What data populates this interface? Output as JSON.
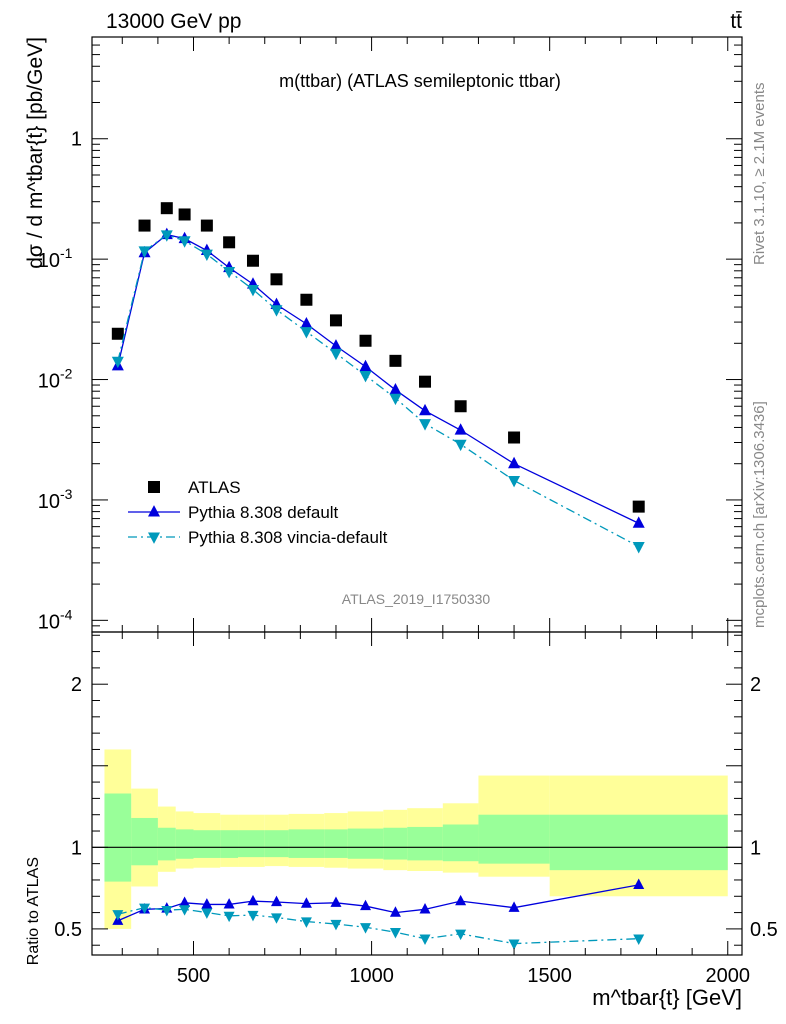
{
  "header": {
    "left": "13000 GeV pp",
    "right": "tt̄"
  },
  "side_text": {
    "rivet": "Rivet 3.1.10, ≥ 2.1M events",
    "mcplots": "mcplots.cern.ch [arXiv:1306.3436]"
  },
  "chart_data": [
    {
      "type": "scatter",
      "title": "m(ttbar) (ATLAS semileptonic ttbar)",
      "ylabel": "dσ / d m^tbar{t} [pb/GeV]",
      "xlabel": "m^tbar{t} [GeV]",
      "analysis_id": "ATLAS_2019_I1750330",
      "y_scale": "log",
      "xlim": [
        215,
        2040
      ],
      "ylim": [
        8e-05,
        7
      ],
      "x_ticks": [
        "500",
        "1000",
        "1500",
        "2000"
      ],
      "y_ticks": [
        "10^-4",
        "10^-3",
        "10^-2",
        "10^-1",
        "1"
      ],
      "legend_position": "bottom-left",
      "x": [
        287.5,
        362.5,
        425,
        475,
        537.5,
        600,
        667,
        733,
        817,
        900,
        983,
        1067,
        1150,
        1250,
        1400,
        1750
      ],
      "series": [
        {
          "name": "ATLAS",
          "marker": "square",
          "color": "#000000",
          "values": [
            0.024,
            0.19,
            0.265,
            0.235,
            0.19,
            0.138,
            0.097,
            0.068,
            0.046,
            0.031,
            0.021,
            0.0143,
            0.0096,
            0.006,
            0.0033,
            0.00088
          ]
        },
        {
          "name": "Pythia 8.308 default",
          "marker": "triangle-up",
          "line": "solid",
          "color": "#0000dd",
          "values": [
            0.013,
            0.113,
            0.16,
            0.148,
            0.118,
            0.085,
            0.062,
            0.042,
            0.029,
            0.019,
            0.0128,
            0.0082,
            0.0055,
            0.0038,
            0.002,
            0.00064
          ]
        },
        {
          "name": "Pythia 8.308 vincia-default",
          "marker": "triangle-down",
          "line": "dash-dot",
          "color": "#0099bb",
          "values": [
            0.0142,
            0.117,
            0.159,
            0.142,
            0.11,
            0.079,
            0.056,
            0.038,
            0.025,
            0.0165,
            0.0108,
            0.007,
            0.0043,
            0.0029,
            0.00145,
            0.00041
          ]
        }
      ]
    },
    {
      "type": "scatter",
      "ylabel": "Ratio to ATLAS",
      "xlabel": "m^tbar{t} [GeV]",
      "xlim": [
        215,
        2040
      ],
      "ylim": [
        0.34,
        2.32
      ],
      "x_ticks": [
        "500",
        "1000",
        "1500",
        "2000"
      ],
      "y_ticks": [
        "0.5",
        "1",
        "2"
      ],
      "reference_line": 1,
      "x_bins": [
        250,
        325,
        400,
        450,
        500,
        575,
        625,
        700,
        767,
        867,
        933,
        1033,
        1100,
        1200,
        1300,
        1500,
        2000
      ],
      "bands": [
        {
          "name": "outer",
          "color": "#ffff99",
          "low": [
            0.5,
            0.76,
            0.85,
            0.87,
            0.875,
            0.88,
            0.88,
            0.885,
            0.88,
            0.875,
            0.87,
            0.86,
            0.855,
            0.845,
            0.82,
            0.7
          ],
          "high": [
            1.6,
            1.36,
            1.25,
            1.22,
            1.21,
            1.2,
            1.2,
            1.2,
            1.205,
            1.21,
            1.22,
            1.23,
            1.24,
            1.27,
            1.44,
            1.44
          ]
        },
        {
          "name": "inner",
          "color": "#99ff99",
          "low": [
            0.79,
            0.89,
            0.92,
            0.93,
            0.935,
            0.935,
            0.94,
            0.94,
            0.935,
            0.935,
            0.93,
            0.925,
            0.92,
            0.915,
            0.9,
            0.86
          ],
          "high": [
            1.33,
            1.18,
            1.12,
            1.11,
            1.105,
            1.105,
            1.105,
            1.105,
            1.11,
            1.11,
            1.115,
            1.12,
            1.125,
            1.14,
            1.2,
            1.2
          ]
        }
      ],
      "x": [
        287.5,
        362.5,
        425,
        475,
        537.5,
        600,
        667,
        733,
        817,
        900,
        983,
        1067,
        1150,
        1250,
        1400,
        1750
      ],
      "series": [
        {
          "name": "Pythia 8.308 default",
          "marker": "triangle-up",
          "line": "solid",
          "color": "#0000dd",
          "values": [
            0.55,
            0.62,
            0.625,
            0.66,
            0.65,
            0.65,
            0.67,
            0.665,
            0.655,
            0.66,
            0.64,
            0.6,
            0.62,
            0.67,
            0.63,
            0.77
          ]
        },
        {
          "name": "Pythia 8.308 vincia-default",
          "marker": "triangle-down",
          "line": "dash-dot",
          "color": "#0099bb",
          "values": [
            0.59,
            0.63,
            0.615,
            0.62,
            0.6,
            0.58,
            0.585,
            0.57,
            0.545,
            0.53,
            0.51,
            0.48,
            0.44,
            0.47,
            0.41,
            0.44
          ]
        }
      ]
    }
  ]
}
